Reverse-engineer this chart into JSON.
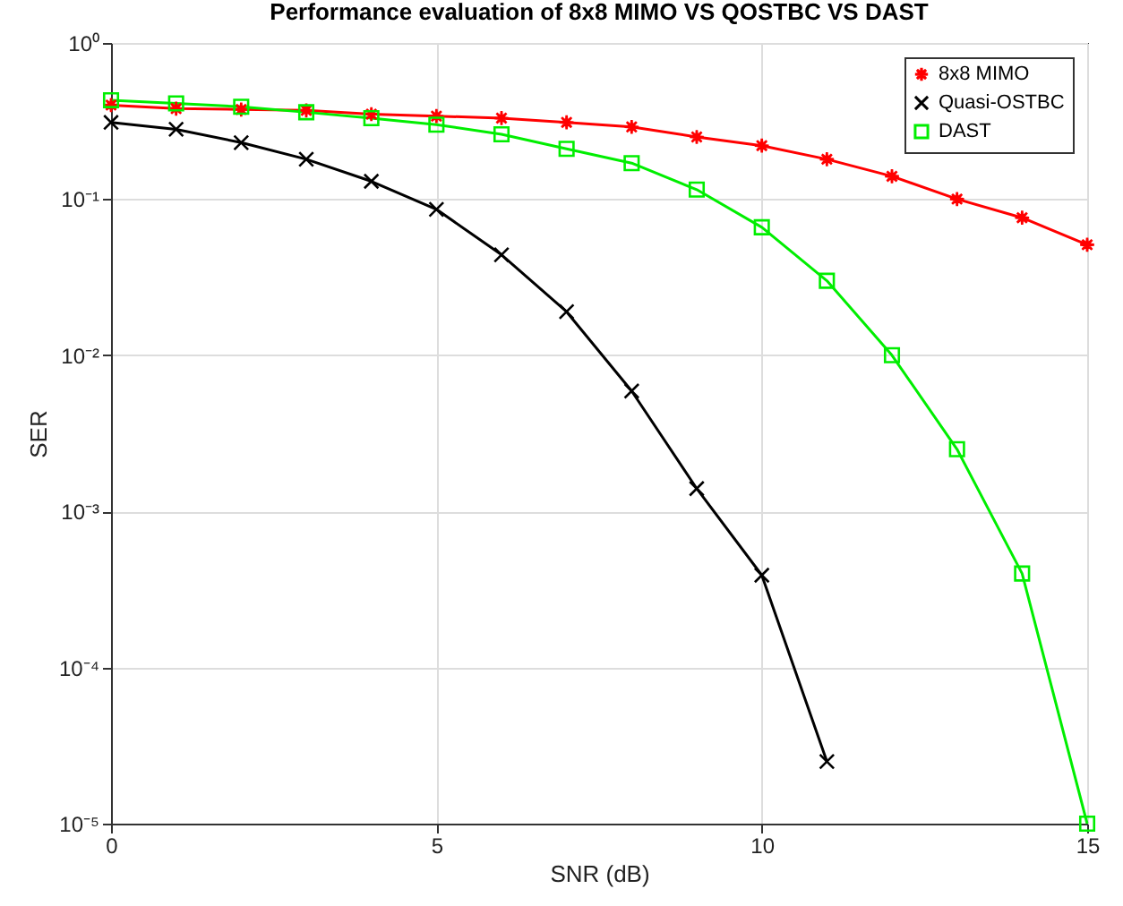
{
  "chart_data": {
    "type": "line",
    "title": "Performance evaluation of 8x8 MIMO VS QOSTBC VS DAST",
    "xlabel": "SNR (dB)",
    "ylabel": "SER",
    "log": "y",
    "grid": true,
    "legend": "top right",
    "line_style": "solid",
    "x": [
      0,
      1,
      2,
      3,
      4,
      5,
      6,
      7,
      8,
      9,
      10,
      11,
      12,
      13,
      14,
      15
    ],
    "xlim": [
      0,
      15
    ],
    "xticks": [
      0,
      5,
      10,
      15
    ],
    "ylim": [
      1e-05,
      1
    ],
    "yticks": [
      {
        "value": 1e-05,
        "label": "10⁻⁵"
      },
      {
        "value": 0.0001,
        "label": "10⁻⁴"
      },
      {
        "value": 0.001,
        "label": "10⁻³"
      },
      {
        "value": 0.01,
        "label": "10⁻²"
      },
      {
        "value": 0.1,
        "label": "10⁻¹"
      },
      {
        "value": 1,
        "label": "10⁰"
      }
    ],
    "series": [
      {
        "name": "8x8 MIMO",
        "color": "#ff0000",
        "marker": "star",
        "values": [
          0.4,
          0.38,
          0.375,
          0.37,
          0.35,
          0.34,
          0.33,
          0.31,
          0.29,
          0.25,
          0.22,
          0.18,
          0.14,
          0.1,
          0.076,
          0.051
        ]
      },
      {
        "name": "Quasi-OSTBC",
        "color": "#000000",
        "marker": "cross",
        "values": [
          0.31,
          0.28,
          0.23,
          0.18,
          0.13,
          0.086,
          0.044,
          0.019,
          0.0059,
          0.0014,
          0.00039,
          2.5e-05,
          null,
          null,
          null,
          null
        ]
      },
      {
        "name": "DAST",
        "color": "#00ee00",
        "marker": "square",
        "values": [
          0.43,
          0.41,
          0.39,
          0.36,
          0.33,
          0.3,
          0.26,
          0.21,
          0.17,
          0.115,
          0.066,
          0.03,
          0.01,
          0.0025,
          0.0004,
          1e-05
        ]
      }
    ]
  }
}
